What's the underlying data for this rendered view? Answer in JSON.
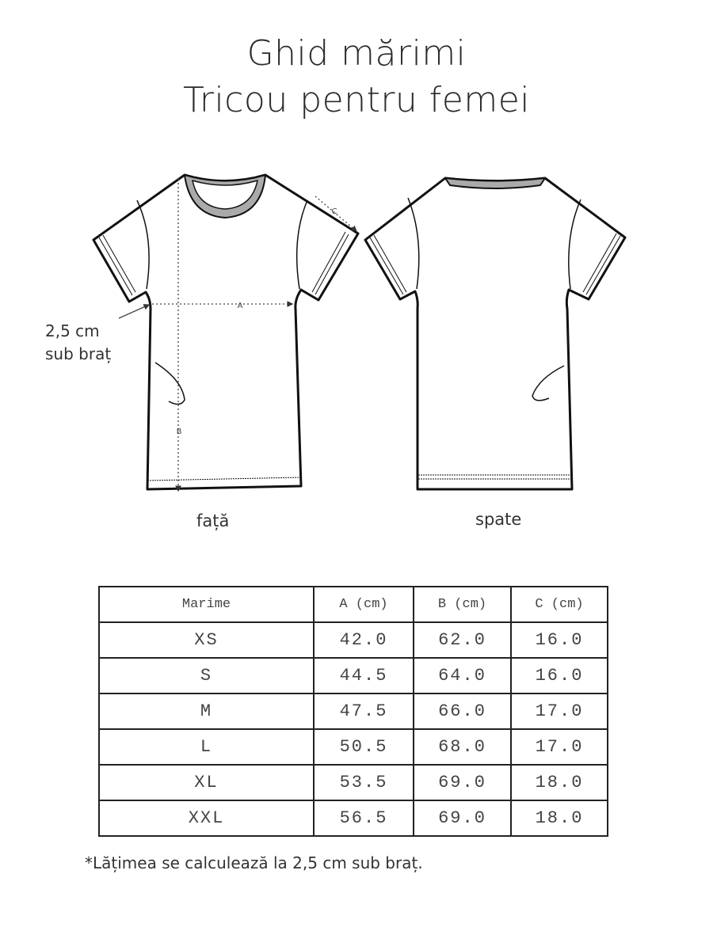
{
  "title": {
    "line1": "Ghid mărimi",
    "line2": "Tricou pentru femei"
  },
  "diagram": {
    "front_label": "față",
    "back_label": "spate",
    "underarm_note": [
      "2,5 cm",
      "sub braț"
    ],
    "measure_labels": {
      "a": "A",
      "b": "B",
      "c": "C"
    }
  },
  "size_table": {
    "headers": [
      "Marime",
      "A (cm)",
      "B (cm)",
      "C (cm)"
    ],
    "rows": [
      [
        "XS",
        "42.0",
        "62.0",
        "16.0"
      ],
      [
        "S",
        "44.5",
        "64.0",
        "16.0"
      ],
      [
        "M",
        "47.5",
        "66.0",
        "17.0"
      ],
      [
        "L",
        "50.5",
        "68.0",
        "17.0"
      ],
      [
        "XL",
        "53.5",
        "69.0",
        "18.0"
      ],
      [
        "XXL",
        "56.5",
        "69.0",
        "18.0"
      ]
    ]
  },
  "footnote": "*Lățimea se calculează la 2,5 cm sub braț."
}
